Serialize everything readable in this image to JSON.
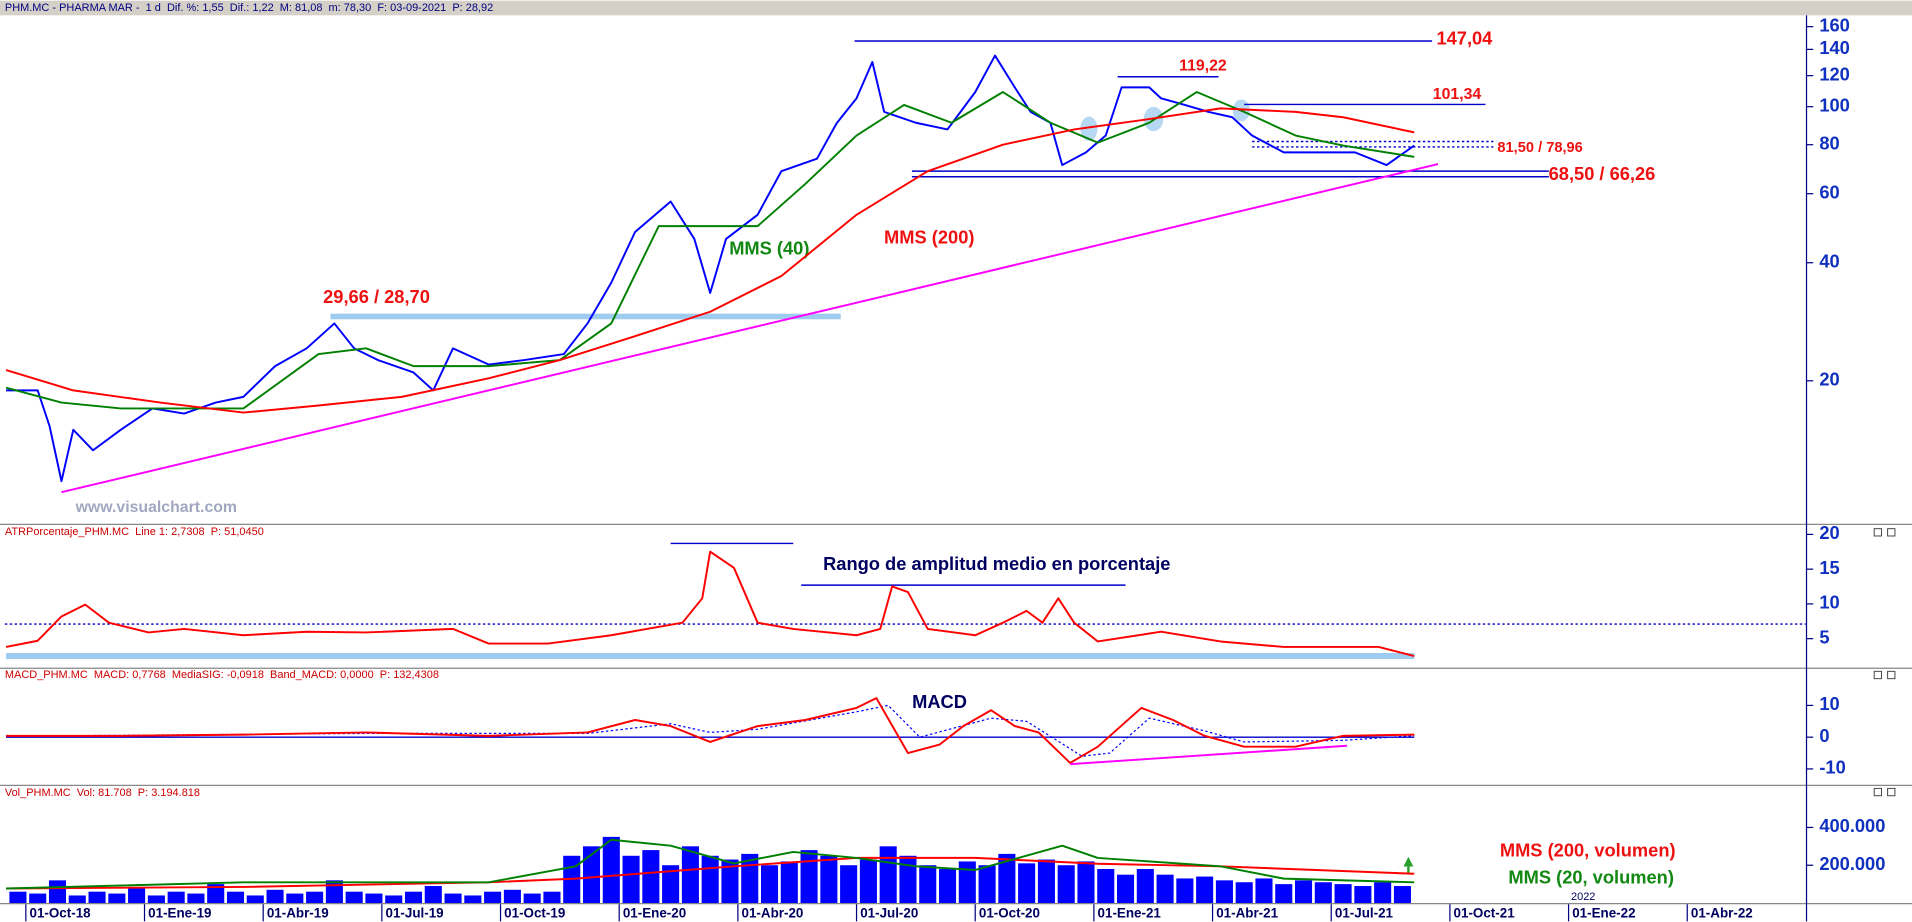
{
  "x_axis": {
    "xlim": [
      -1.33,
      44.2
    ],
    "xticks": [
      {
        "value": -0.8,
        "label": "01-Oct-18"
      },
      {
        "value": 2.2,
        "label": "01-Ene-19"
      },
      {
        "value": 5.2,
        "label": "01-Abr-19"
      },
      {
        "value": 8.2,
        "label": "01-Jul-19"
      },
      {
        "value": 11.2,
        "label": "01-Oct-19"
      },
      {
        "value": 14.2,
        "label": "01-Ene-20"
      },
      {
        "value": 17.2,
        "label": "01-Abr-20"
      },
      {
        "value": 20.2,
        "label": "01-Jul-20"
      },
      {
        "value": 23.2,
        "label": "01-Oct-20"
      },
      {
        "value": 26.2,
        "label": "01-Ene-21"
      },
      {
        "value": 29.2,
        "label": "01-Abr-21"
      },
      {
        "value": 32.2,
        "label": "01-Jul-21"
      },
      {
        "value": 35.2,
        "label": "01-Oct-21"
      },
      {
        "value": 38.2,
        "label": "01-Ene-22"
      },
      {
        "value": 41.2,
        "label": "01-Abr-22"
      }
    ],
    "year_marker": {
      "value": 38.2,
      "label": "2022"
    }
  },
  "chart_data": [
    {
      "type": "line",
      "title": "PHM.MC - PHARMA MAR -  1 d  Dif. %: 1,55  Dif.: 1,22  M: 81,08  m: 78,30  F: 03-09-2021  P: 28,92",
      "log": true,
      "ylim": [
        8.7,
        171
      ],
      "yticks": [
        20,
        40,
        60,
        80,
        100,
        120,
        140,
        160
      ],
      "series": [
        {
          "color": "#0000ff",
          "x": [
            -1.3,
            -0.5,
            -0.2,
            0.1,
            0.4,
            0.9,
            1.6,
            2.4,
            3.2,
            4.0,
            4.7,
            5.5,
            6.3,
            7.0,
            7.5,
            8.1,
            9.0,
            9.5,
            10.0,
            10.9,
            11.8,
            12.8,
            13.4,
            14.0,
            14.6,
            15.5,
            16.1,
            16.5,
            16.9,
            17.7,
            18.3,
            19.2,
            19.7,
            20.2,
            20.6,
            20.9,
            21.7,
            22.5,
            23.2,
            23.7,
            24.2,
            24.6,
            25.1,
            25.4,
            26.0,
            26.5,
            26.9,
            27.6,
            27.9,
            28.5,
            29.1,
            29.7,
            30.2,
            31.0,
            31.9,
            32.8,
            33.6,
            34.3
          ],
          "values": [
            18.9,
            18.9,
            15.3,
            11.1,
            15,
            13.3,
            15,
            17,
            16.5,
            17.6,
            18.2,
            21.8,
            24.2,
            28,
            24.2,
            22.6,
            21,
            18.9,
            24.2,
            22,
            22.6,
            23.4,
            28,
            35.6,
            47.9,
            57.3,
            46,
            33.5,
            46,
            53,
            68.5,
            73.7,
            90.8,
            105,
            130,
            97,
            91,
            87.5,
            109,
            135,
            112,
            97,
            91,
            71,
            76.5,
            84.4,
            112,
            112,
            105,
            101,
            97,
            94,
            84.4,
            76.5,
            76.5,
            76.5,
            71,
            79.6
          ]
        },
        {
          "name": "MMS (40)",
          "color": "#008000",
          "x": [
            -1.3,
            0.1,
            1.6,
            4.7,
            6.6,
            7.8,
            9.0,
            10.9,
            12.7,
            14.0,
            15.2,
            16.5,
            17.7,
            18.9,
            20.2,
            21.4,
            22.6,
            23.9,
            25.1,
            26.3,
            27.6,
            28.8,
            30.0,
            31.3,
            32.5,
            34.3
          ],
          "values": [
            19.2,
            17.6,
            17,
            17,
            23.4,
            24.2,
            21.8,
            21.8,
            22.6,
            28,
            49.6,
            49.6,
            49.6,
            63.5,
            84.4,
            101,
            91,
            109,
            91,
            81,
            91,
            109,
            97,
            84.4,
            79.6,
            74.5
          ]
        },
        {
          "name": "MMS (200)",
          "color": "#ff0000",
          "x": [
            -1.3,
            0.4,
            2.6,
            4.7,
            6.6,
            8.7,
            10.9,
            12.7,
            14.6,
            16.5,
            18.3,
            20.2,
            22.0,
            23.9,
            25.7,
            27.6,
            29.4,
            31.3,
            32.5,
            34.3
          ],
          "values": [
            21.3,
            18.9,
            17.6,
            16.6,
            17.3,
            18.2,
            20.3,
            22.6,
            26,
            30,
            37,
            53,
            68.5,
            80,
            87.5,
            93,
            99,
            97,
            94,
            86
          ]
        },
        {
          "color": "#ff00ff",
          "x": [
            0.1,
            34.9
          ],
          "values": [
            10.4,
            71.4
          ]
        }
      ],
      "levels": [
        {
          "label": "147,04",
          "values": [
            147.04
          ],
          "x": [
            20.15,
            34.75
          ],
          "color": "#0000cc"
        },
        {
          "label": "119,22",
          "values": [
            119.22
          ],
          "x": [
            26.8,
            29.35
          ],
          "color": "#0000cc"
        },
        {
          "label": "101,34",
          "values": [
            101.34
          ],
          "x": [
            30.0,
            36.1
          ],
          "color": "#0000cc"
        },
        {
          "label": "81,50 / 78,96",
          "values": [
            81.5,
            78.96
          ],
          "x": [
            30.2,
            36.3
          ],
          "color": "#0000cc",
          "style": "dotted"
        },
        {
          "label": "68,50 / 66,26",
          "values": [
            68.5,
            66.26
          ],
          "x": [
            21.6,
            37.7
          ],
          "color": "#0000cc"
        },
        {
          "label": "29,66 / 28,70",
          "values": [
            29.66,
            28.7
          ],
          "x": [
            6.9,
            19.8
          ],
          "color": "#9ecbf0",
          "style": "band"
        }
      ],
      "annotations": [
        "www.visualchart.com"
      ]
    },
    {
      "type": "line",
      "title": "ATRPorcentaje_PHM.MC  Line 1: 2,7308  P: 51,0450",
      "ylim": [
        1,
        21
      ],
      "yticks": [
        5,
        10,
        15,
        20
      ],
      "series": [
        {
          "color": "#ff0000",
          "x": [
            -1.3,
            -0.5,
            0.1,
            0.7,
            1.3,
            2.3,
            3.2,
            4.7,
            6.3,
            7.8,
            10.0,
            10.9,
            12.4,
            14.0,
            14.9,
            15.8,
            16.3,
            16.5,
            17.1,
            17.7,
            18.6,
            20.2,
            20.8,
            21.1,
            21.5,
            22.0,
            23.2,
            23.9,
            24.5,
            24.9,
            25.3,
            25.7,
            26.3,
            27.9,
            29.4,
            31.0,
            32.5,
            33.4,
            34.3
          ],
          "values": [
            3.8,
            4.7,
            8.2,
            9.9,
            7.3,
            5.9,
            6.4,
            5.5,
            6,
            5.9,
            6.4,
            4.3,
            4.3,
            5.5,
            6.4,
            7.3,
            10.8,
            17.5,
            15.2,
            7.3,
            6.4,
            5.5,
            6.4,
            12.5,
            11.7,
            6.4,
            5.5,
            7.3,
            9,
            7.3,
            10.8,
            7.3,
            4.6,
            6,
            4.6,
            3.8,
            3.8,
            3.8,
            2.5
          ]
        }
      ],
      "levels": [
        {
          "values": [
            7.1
          ],
          "x": [
            -1.33,
            44.2
          ],
          "color": "#0000cc",
          "style": "dotted"
        },
        {
          "values": [
            2.5
          ],
          "x": [
            -1.3,
            34.3
          ],
          "color": "#9ecbf0",
          "style": "thick"
        },
        {
          "values": [
            18.7
          ],
          "x": [
            15.5,
            18.6
          ],
          "color": "#0000cc"
        },
        {
          "values": [
            12.7
          ],
          "x": [
            18.8,
            27.0
          ],
          "color": "#0000cc"
        }
      ],
      "annotations": [
        "Rango de amplitud medio en porcentaje"
      ]
    },
    {
      "type": "line",
      "title": "MACD_PHM.MC  MACD: 0,7768  MediaSIG: -0,0918  Band_MACD: 0,0000  P: 132,4308",
      "ylim": [
        -14.6,
        21.5
      ],
      "yticks": [
        -10,
        0,
        10
      ],
      "series": [
        {
          "color": "#0000ff",
          "style": "dotted",
          "x": [
            -1.3,
            7.8,
            13.4,
            15.5,
            16.5,
            17.7,
            20.2,
            21.0,
            21.8,
            23.6,
            24.5,
            25.9,
            26.6,
            27.6,
            29.0,
            30.0,
            32.5,
            34.3
          ],
          "values": [
            0.3,
            1.2,
            1.2,
            4.2,
            1.5,
            2.5,
            8,
            10,
            0,
            6,
            5,
            -6,
            -5,
            6,
            2,
            -1.5,
            -1,
            0.5
          ]
        },
        {
          "color": "#ff0000",
          "x": [
            -1.3,
            1.6,
            4.7,
            7.8,
            10.9,
            13.4,
            14.6,
            15.5,
            16.5,
            17.7,
            18.9,
            20.2,
            20.7,
            21.5,
            22.3,
            22.9,
            23.6,
            24.2,
            24.8,
            25.6,
            26.3,
            27.4,
            28.2,
            29.0,
            30.0,
            31.3,
            32.5,
            34.3
          ],
          "values": [
            0.4,
            0.4,
            0.8,
            1.5,
            0.4,
            1.5,
            5.4,
            3.5,
            -1.5,
            3.5,
            5.4,
            9.2,
            12.3,
            -5,
            -2.3,
            3.5,
            8.5,
            3.5,
            1.5,
            -8.1,
            -3,
            9.2,
            5.4,
            0.4,
            -3,
            -3,
            0.4,
            0.8
          ]
        },
        {
          "color": "#ff00ff",
          "x": [
            25.6,
            32.6
          ],
          "values": [
            -8.5,
            -2.7
          ]
        }
      ],
      "levels": [
        {
          "values": [
            0
          ],
          "x": [
            -1.3,
            34.3
          ],
          "color": "#0000cc"
        }
      ],
      "annotations": [
        "MACD"
      ]
    },
    {
      "type": "bar",
      "title": "Vol_PHM.MC  Vol: 81.708  P: 3.194.818",
      "ylim": [
        0,
        600000
      ],
      "yticks": [
        {
          "value": 200000,
          "label": "200.000"
        },
        {
          "value": 400000,
          "label": "400.000"
        }
      ],
      "bars": {
        "color": "#0000ff",
        "x": [
          -1,
          -0.5,
          0,
          0.5,
          1,
          1.5,
          2,
          2.5,
          3,
          3.5,
          4,
          4.5,
          5,
          5.5,
          6,
          6.5,
          7,
          7.5,
          8,
          8.5,
          9,
          9.5,
          10,
          10.5,
          11,
          11.5,
          12,
          12.5,
          13,
          13.5,
          14,
          14.5,
          15,
          15.5,
          16,
          16.5,
          17,
          17.5,
          18,
          18.5,
          19,
          19.5,
          20,
          20.5,
          21,
          21.5,
          22,
          22.5,
          23,
          23.5,
          24,
          24.5,
          25,
          25.5,
          26,
          26.5,
          27,
          27.5,
          28,
          28.5,
          29,
          29.5,
          30,
          30.5,
          31,
          31.5,
          32,
          32.5,
          33,
          33.5,
          34
        ],
        "values": [
          60000,
          50000,
          120000,
          40000,
          60000,
          50000,
          80000,
          40000,
          60000,
          50000,
          100000,
          60000,
          40000,
          70000,
          50000,
          60000,
          120000,
          60000,
          50000,
          40000,
          60000,
          90000,
          50000,
          40000,
          60000,
          70000,
          50000,
          60000,
          250000,
          300000,
          350000,
          250000,
          280000,
          200000,
          300000,
          250000,
          230000,
          260000,
          200000,
          220000,
          280000,
          250000,
          200000,
          230000,
          300000,
          250000,
          200000,
          180000,
          220000,
          200000,
          260000,
          210000,
          230000,
          200000,
          220000,
          180000,
          150000,
          180000,
          150000,
          130000,
          140000,
          120000,
          110000,
          130000,
          100000,
          120000,
          110000,
          100000,
          90000,
          110000,
          90000
        ]
      },
      "series": [
        {
          "name": "MMS (200, volumen)",
          "color": "#ff0000",
          "x": [
            -1.3,
            4.7,
            10.9,
            13.1,
            17.1,
            20.2,
            23.2,
            26.3,
            29.4,
            34.3
          ],
          "values": [
            77000,
            85000,
            110000,
            129000,
            194000,
            239000,
            239000,
            208000,
            194000,
            155000
          ]
        },
        {
          "name": "MMS (20, volumen)",
          "color": "#008000",
          "x": [
            -1.3,
            4.7,
            10.9,
            13.1,
            14.0,
            15.5,
            17.1,
            18.6,
            20.2,
            21.7,
            23.2,
            25.4,
            26.3,
            29.4,
            31.0,
            34.3
          ],
          "values": [
            77000,
            110000,
            110000,
            194000,
            335000,
            303000,
            210000,
            270000,
            239000,
            194000,
            175000,
            303000,
            239000,
            194000,
            129000,
            110000
          ]
        }
      ]
    }
  ]
}
